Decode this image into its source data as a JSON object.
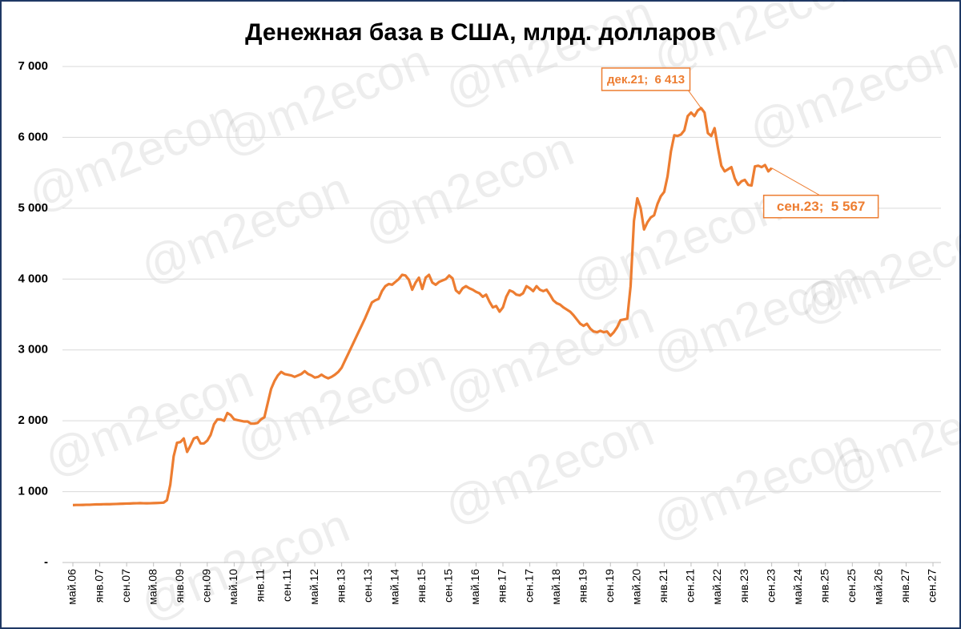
{
  "chart_data": {
    "type": "line",
    "title": "Денежная база в США, млрд. долларов",
    "watermark": "@m2econ",
    "categories": [
      "май.06",
      null,
      null,
      null,
      null,
      null,
      null,
      null,
      "янв.07",
      null,
      null,
      null,
      null,
      null,
      null,
      null,
      "сен.07",
      null,
      null,
      null,
      null,
      null,
      null,
      null,
      "май.08",
      null,
      null,
      null,
      null,
      null,
      null,
      null,
      "янв.09",
      null,
      null,
      null,
      null,
      null,
      null,
      null,
      "сен.09",
      null,
      null,
      null,
      null,
      null,
      null,
      null,
      "май.10",
      null,
      null,
      null,
      null,
      null,
      null,
      null,
      "янв.11",
      null,
      null,
      null,
      null,
      null,
      null,
      null,
      "сен.11",
      null,
      null,
      null,
      null,
      null,
      null,
      null,
      "май.12",
      null,
      null,
      null,
      null,
      null,
      null,
      null,
      "янв.13",
      null,
      null,
      null,
      null,
      null,
      null,
      null,
      "сен.13",
      null,
      null,
      null,
      null,
      null,
      null,
      null,
      "май.14",
      null,
      null,
      null,
      null,
      null,
      null,
      null,
      "янв.15",
      null,
      null,
      null,
      null,
      null,
      null,
      null,
      "сен.15",
      null,
      null,
      null,
      null,
      null,
      null,
      null,
      "май.16",
      null,
      null,
      null,
      null,
      null,
      null,
      null,
      "янв.17",
      null,
      null,
      null,
      null,
      null,
      null,
      null,
      "сен.17",
      null,
      null,
      null,
      null,
      null,
      null,
      null,
      "май.18",
      null,
      null,
      null,
      null,
      null,
      null,
      null,
      "янв.19",
      null,
      null,
      null,
      null,
      null,
      null,
      null,
      "сен.19",
      null,
      null,
      null,
      null,
      null,
      null,
      null,
      "май.20",
      null,
      null,
      null,
      null,
      null,
      null,
      null,
      "янв.21",
      null,
      null,
      null,
      null,
      null,
      null,
      null,
      "сен.21",
      null,
      null,
      null,
      null,
      null,
      null,
      null,
      "май.22",
      null,
      null,
      null,
      null,
      null,
      null,
      null,
      "янв.23",
      null,
      null,
      null,
      null,
      null,
      null,
      null,
      "сен.23",
      null,
      null,
      null,
      null,
      null,
      null,
      null,
      "май.24",
      null,
      null,
      null,
      null,
      null,
      null,
      null,
      "янв.25",
      null,
      null,
      null,
      null,
      null,
      null,
      null,
      "сен.25",
      null,
      null,
      null,
      null,
      null,
      null,
      null,
      "май.26",
      null,
      null,
      null,
      null,
      null,
      null,
      null,
      "янв.27",
      null,
      null,
      null,
      null,
      null,
      null,
      null,
      "сен.27"
    ],
    "series": [
      {
        "color": "#ED7D31",
        "values": [
          810,
          812,
          812,
          813,
          815,
          815,
          818,
          820,
          820,
          822,
          823,
          823,
          825,
          826,
          828,
          830,
          832,
          833,
          835,
          836,
          838,
          836,
          835,
          836,
          838,
          840,
          842,
          845,
          880,
          1100,
          1500,
          1690,
          1700,
          1750,
          1560,
          1650,
          1750,
          1770,
          1680,
          1680,
          1720,
          1800,
          1950,
          2020,
          2020,
          2000,
          2110,
          2080,
          2020,
          2010,
          2000,
          1990,
          1990,
          1960,
          1960,
          1970,
          2020,
          2050,
          2250,
          2450,
          2560,
          2640,
          2690,
          2660,
          2650,
          2640,
          2620,
          2640,
          2660,
          2700,
          2660,
          2640,
          2610,
          2620,
          2650,
          2620,
          2600,
          2620,
          2650,
          2690,
          2750,
          2850,
          2950,
          3050,
          3150,
          3250,
          3350,
          3450,
          3560,
          3670,
          3700,
          3720,
          3830,
          3900,
          3930,
          3920,
          3960,
          4000,
          4060,
          4050,
          3990,
          3850,
          3950,
          4020,
          3860,
          4020,
          4060,
          3950,
          3920,
          3960,
          3980,
          4000,
          4050,
          4010,
          3840,
          3800,
          3870,
          3900,
          3870,
          3850,
          3820,
          3800,
          3750,
          3780,
          3680,
          3600,
          3620,
          3540,
          3600,
          3750,
          3840,
          3820,
          3780,
          3770,
          3800,
          3900,
          3870,
          3830,
          3900,
          3850,
          3830,
          3850,
          3780,
          3700,
          3660,
          3640,
          3600,
          3570,
          3540,
          3490,
          3430,
          3370,
          3340,
          3370,
          3300,
          3260,
          3250,
          3270,
          3250,
          3260,
          3200,
          3250,
          3320,
          3420,
          3430,
          3440,
          3900,
          4820,
          5140,
          5000,
          4700,
          4800,
          4870,
          4900,
          5060,
          5170,
          5230,
          5450,
          5800,
          6030,
          6020,
          6040,
          6100,
          6300,
          6350,
          6300,
          6380,
          6413,
          6350,
          6060,
          6020,
          6130,
          5850,
          5600,
          5520,
          5550,
          5580,
          5420,
          5330,
          5380,
          5400,
          5330,
          5320,
          5590,
          5600,
          5580,
          5610,
          5520,
          5567,
          null,
          null,
          null,
          null,
          null,
          null,
          null,
          null,
          null,
          null,
          null,
          null,
          null,
          null,
          null,
          null,
          null,
          null,
          null,
          null,
          null,
          null,
          null,
          null,
          null,
          null,
          null,
          null,
          null,
          null,
          null,
          null,
          null,
          null,
          null,
          null,
          null,
          null,
          null,
          null,
          null,
          null,
          null,
          null,
          null,
          null,
          null,
          null
        ],
        "value_labels": [
          null,
          null,
          null,
          null,
          null,
          null,
          null,
          null,
          null,
          null,
          null,
          null,
          null,
          null,
          null,
          null,
          null,
          null,
          null,
          null,
          null,
          null,
          null,
          null,
          null,
          null,
          null,
          null,
          null,
          null,
          null,
          null,
          null,
          null,
          null,
          null,
          null,
          null,
          null,
          null,
          null,
          null,
          null,
          null,
          null,
          null,
          null,
          null,
          null,
          null,
          null,
          null,
          null,
          null,
          null,
          null,
          null,
          null,
          null,
          null,
          null,
          null,
          null,
          null,
          null,
          null,
          null,
          null,
          null,
          null,
          null,
          null,
          null,
          null,
          null,
          null,
          null,
          null,
          null,
          null,
          null,
          null,
          null,
          null,
          null,
          null,
          null,
          null,
          null,
          null,
          null,
          null,
          null,
          null,
          null,
          null,
          null,
          null,
          null,
          null,
          null,
          null,
          null,
          null,
          null,
          null,
          null,
          null,
          null,
          null,
          null,
          null,
          null,
          null,
          null,
          null,
          null,
          null,
          null,
          null,
          null,
          null,
          null,
          null,
          null,
          null,
          null,
          null,
          null,
          null,
          null,
          null,
          null,
          null,
          null,
          null,
          null,
          null,
          null,
          null,
          null,
          null,
          null,
          null,
          null,
          null,
          null,
          null,
          null,
          null,
          null,
          null,
          null,
          null,
          null,
          null,
          null,
          null,
          null,
          null,
          null,
          null,
          null,
          null,
          null,
          null,
          null,
          null,
          null,
          null,
          null,
          null,
          null,
          null,
          null,
          null,
          null,
          null,
          null,
          null,
          null,
          null,
          null,
          null,
          null,
          null,
          null,
          "дек.21;  6 413",
          null,
          null,
          null,
          null,
          null,
          null,
          null,
          null,
          null,
          null,
          null,
          null,
          null,
          null,
          null,
          null,
          null,
          null,
          null,
          null,
          "сен.23;  5 567",
          null,
          null,
          null,
          null,
          null,
          null,
          null,
          null,
          null,
          null,
          null,
          null,
          null,
          null,
          null,
          null,
          null,
          null,
          null,
          null,
          null,
          null,
          null,
          null,
          null,
          null,
          null,
          null,
          null,
          null,
          null,
          null,
          null,
          null,
          null,
          null,
          null,
          null,
          null,
          null,
          null,
          null,
          null,
          null,
          null,
          null,
          null,
          null
        ]
      }
    ],
    "ylim": [
      0,
      7000
    ],
    "yticks": [
      {
        "value": 0,
        "label": "-"
      },
      {
        "value": 1000,
        "label": "1 000"
      },
      {
        "value": 2000,
        "label": "2 000"
      },
      {
        "value": 3000,
        "label": "3 000"
      },
      {
        "value": 4000,
        "label": "4 000"
      },
      {
        "value": 5000,
        "label": "5 000"
      },
      {
        "value": 6000,
        "label": "6 000"
      },
      {
        "value": 7000,
        "label": "7 000"
      }
    ],
    "grid": true
  }
}
